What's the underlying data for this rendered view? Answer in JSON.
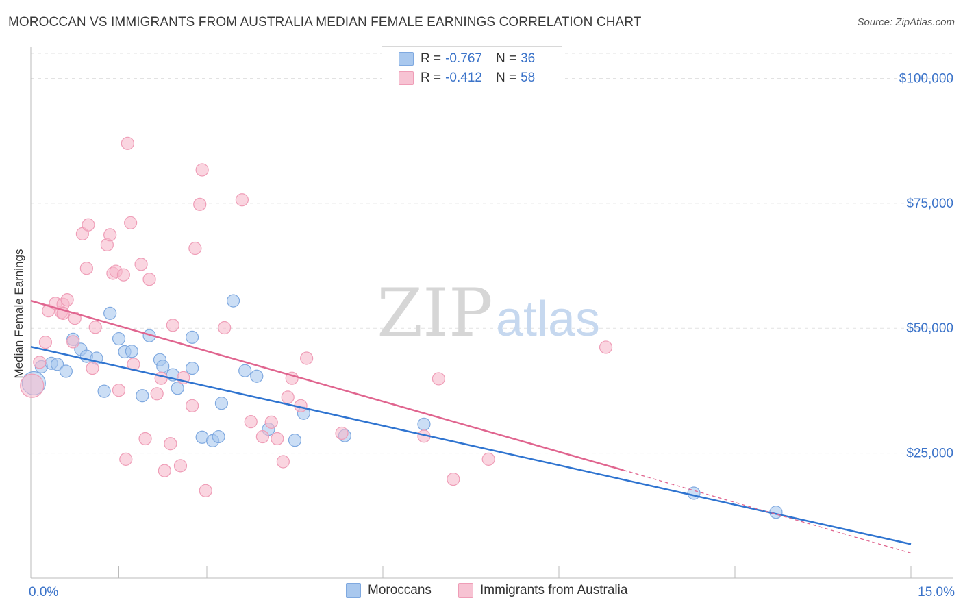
{
  "title": "MOROCCAN VS IMMIGRANTS FROM AUSTRALIA MEDIAN FEMALE EARNINGS CORRELATION CHART",
  "source": "Source: ZipAtlas.com",
  "watermark": {
    "zip": "ZIP",
    "atlas": "atlas"
  },
  "legend": {
    "r_label": "R =",
    "n_label": "N =",
    "series1": {
      "r": "-0.767",
      "n": "36"
    },
    "series2": {
      "r": "-0.412",
      "n": "58"
    }
  },
  "chart_data": {
    "type": "scatter",
    "title": "MOROCCAN VS IMMIGRANTS FROM AUSTRALIA MEDIAN FEMALE EARNINGS CORRELATION CHART",
    "xlabel": "",
    "ylabel": "Median Female Earnings",
    "xlim": [
      0,
      15
    ],
    "ylim": [
      0,
      105000
    ],
    "x_tick_labels": [
      "0.0%",
      "15.0%"
    ],
    "y_ticks": [
      {
        "value": 25000,
        "label": "$25,000"
      },
      {
        "value": 50000,
        "label": "$50,000"
      },
      {
        "value": 75000,
        "label": "$75,000"
      },
      {
        "value": 100000,
        "label": "$100,000"
      }
    ],
    "colors": {
      "moroccans_fill": "#a9c8ee",
      "moroccans_line": "#2f74d0",
      "australia_fill": "#f7b9cc",
      "australia_line": "#e0658f",
      "axis_label": "#3b73c9",
      "grid": "#e2e2e2"
    },
    "series": [
      {
        "name": "Moroccans",
        "r": -0.767,
        "n": 36,
        "trend": {
          "x0": 0,
          "y0": 46300,
          "x1": 15,
          "y1": 6800
        },
        "points": [
          {
            "x": 0.05,
            "y": 39000,
            "big": true
          },
          {
            "x": 0.18,
            "y": 42300
          },
          {
            "x": 0.35,
            "y": 43000
          },
          {
            "x": 0.45,
            "y": 42800
          },
          {
            "x": 0.6,
            "y": 41400
          },
          {
            "x": 0.72,
            "y": 47800
          },
          {
            "x": 0.85,
            "y": 45800
          },
          {
            "x": 0.95,
            "y": 44400
          },
          {
            "x": 1.12,
            "y": 44000
          },
          {
            "x": 1.25,
            "y": 37400
          },
          {
            "x": 1.35,
            "y": 53000
          },
          {
            "x": 1.5,
            "y": 47900
          },
          {
            "x": 1.6,
            "y": 45300
          },
          {
            "x": 1.72,
            "y": 45400
          },
          {
            "x": 1.9,
            "y": 36500
          },
          {
            "x": 2.02,
            "y": 48500
          },
          {
            "x": 2.2,
            "y": 43700
          },
          {
            "x": 2.25,
            "y": 42400
          },
          {
            "x": 2.42,
            "y": 40700
          },
          {
            "x": 2.5,
            "y": 38000
          },
          {
            "x": 2.75,
            "y": 48200
          },
          {
            "x": 2.75,
            "y": 42000
          },
          {
            "x": 2.92,
            "y": 28200
          },
          {
            "x": 3.1,
            "y": 27500
          },
          {
            "x": 3.2,
            "y": 28300
          },
          {
            "x": 3.25,
            "y": 35000
          },
          {
            "x": 3.45,
            "y": 55500
          },
          {
            "x": 3.65,
            "y": 41500
          },
          {
            "x": 3.85,
            "y": 40400
          },
          {
            "x": 4.05,
            "y": 29800
          },
          {
            "x": 4.5,
            "y": 27600
          },
          {
            "x": 4.65,
            "y": 33000
          },
          {
            "x": 5.35,
            "y": 28500
          },
          {
            "x": 6.7,
            "y": 30800
          },
          {
            "x": 11.3,
            "y": 17000
          },
          {
            "x": 12.7,
            "y": 13200
          }
        ]
      },
      {
        "name": "Immigrants from Australia",
        "r": -0.412,
        "n": 58,
        "trend": {
          "x0": 0,
          "y0": 55500,
          "x1": 10.1,
          "y1": 21600
        },
        "trend_dashed": {
          "x0": 10.1,
          "y0": 21600,
          "x1": 15,
          "y1": 5000
        },
        "points": [
          {
            "x": 0.02,
            "y": 38500,
            "big": true
          },
          {
            "x": 0.15,
            "y": 43200
          },
          {
            "x": 0.25,
            "y": 47200
          },
          {
            "x": 0.3,
            "y": 53500
          },
          {
            "x": 0.42,
            "y": 55000
          },
          {
            "x": 0.52,
            "y": 53200
          },
          {
            "x": 0.55,
            "y": 54800
          },
          {
            "x": 0.62,
            "y": 55700
          },
          {
            "x": 0.72,
            "y": 47300
          },
          {
            "x": 0.75,
            "y": 52000
          },
          {
            "x": 0.88,
            "y": 68900
          },
          {
            "x": 0.95,
            "y": 62000
          },
          {
            "x": 0.98,
            "y": 70700
          },
          {
            "x": 1.05,
            "y": 42000
          },
          {
            "x": 1.1,
            "y": 50200
          },
          {
            "x": 1.3,
            "y": 66700
          },
          {
            "x": 1.35,
            "y": 68700
          },
          {
            "x": 1.4,
            "y": 61000
          },
          {
            "x": 1.45,
            "y": 61400
          },
          {
            "x": 1.5,
            "y": 37600
          },
          {
            "x": 1.58,
            "y": 60700
          },
          {
            "x": 1.62,
            "y": 23800
          },
          {
            "x": 1.65,
            "y": 87000
          },
          {
            "x": 1.7,
            "y": 71100
          },
          {
            "x": 1.88,
            "y": 62800
          },
          {
            "x": 1.95,
            "y": 27900
          },
          {
            "x": 2.02,
            "y": 59800
          },
          {
            "x": 2.15,
            "y": 36900
          },
          {
            "x": 2.22,
            "y": 40000
          },
          {
            "x": 2.28,
            "y": 21500
          },
          {
            "x": 2.38,
            "y": 26900
          },
          {
            "x": 2.42,
            "y": 50600
          },
          {
            "x": 2.55,
            "y": 22500
          },
          {
            "x": 2.6,
            "y": 40100
          },
          {
            "x": 2.75,
            "y": 34500
          },
          {
            "x": 2.8,
            "y": 66000
          },
          {
            "x": 2.88,
            "y": 74800
          },
          {
            "x": 2.92,
            "y": 81700
          },
          {
            "x": 2.98,
            "y": 17500
          },
          {
            "x": 3.3,
            "y": 50100
          },
          {
            "x": 3.6,
            "y": 75700
          },
          {
            "x": 3.75,
            "y": 31300
          },
          {
            "x": 3.95,
            "y": 28300
          },
          {
            "x": 4.1,
            "y": 31200
          },
          {
            "x": 4.2,
            "y": 27900
          },
          {
            "x": 4.3,
            "y": 23300
          },
          {
            "x": 4.38,
            "y": 36200
          },
          {
            "x": 4.45,
            "y": 40000
          },
          {
            "x": 4.6,
            "y": 34500
          },
          {
            "x": 4.7,
            "y": 44000
          },
          {
            "x": 5.3,
            "y": 29000
          },
          {
            "x": 6.7,
            "y": 28400
          },
          {
            "x": 6.95,
            "y": 39900
          },
          {
            "x": 7.2,
            "y": 19800
          },
          {
            "x": 7.8,
            "y": 23800
          },
          {
            "x": 9.8,
            "y": 46200
          },
          {
            "x": 0.55,
            "y": 53000
          },
          {
            "x": 1.75,
            "y": 42800
          }
        ]
      }
    ]
  }
}
